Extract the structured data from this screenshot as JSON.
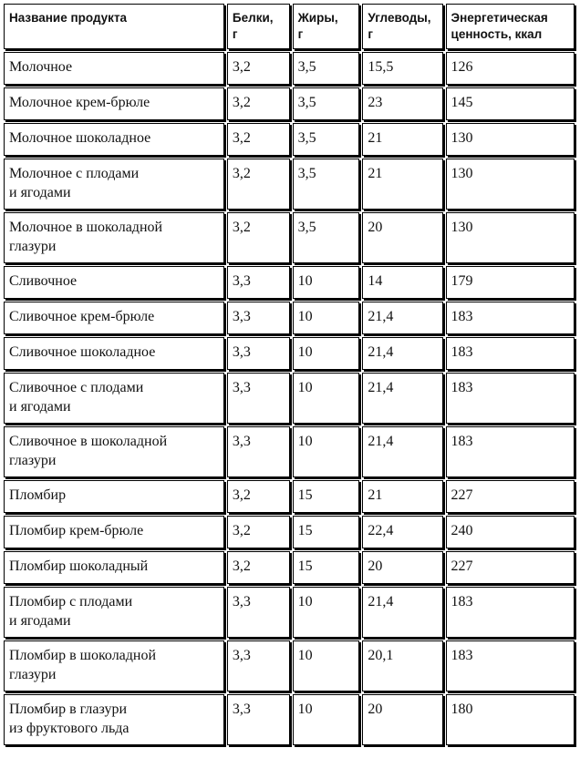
{
  "table": {
    "header": [
      "Название продукта",
      "Белки,\nг",
      "Жиры,\nг",
      "Углеводы,\nг",
      "Энергетическая\nценность, ккал"
    ],
    "rows": [
      [
        "Молочное",
        "3,2",
        "3,5",
        "15,5",
        "126"
      ],
      [
        "Молочное крем-брюле",
        "3,2",
        "3,5",
        "23",
        "145"
      ],
      [
        "Молочное шоколадное",
        "3,2",
        "3,5",
        "21",
        "130"
      ],
      [
        "Молочное с плодами\nи ягодами",
        "3,2",
        "3,5",
        "21",
        "130"
      ],
      [
        "Молочное в шоколадной\nглазури",
        "3,2",
        "3,5",
        "20",
        "130"
      ],
      [
        "Сливочное",
        "3,3",
        "10",
        "14",
        "179"
      ],
      [
        "Сливочное крем-брюле",
        "3,3",
        "10",
        "21,4",
        "183"
      ],
      [
        "Сливочное шоколадное",
        "3,3",
        "10",
        "21,4",
        "183"
      ],
      [
        "Сливочное с плодами\nи ягодами",
        "3,3",
        "10",
        "21,4",
        "183"
      ],
      [
        "Сливочное в шоколадной\nглазури",
        "3,3",
        "10",
        "21,4",
        "183"
      ],
      [
        "Пломбир",
        "3,2",
        "15",
        "21",
        "227"
      ],
      [
        "Пломбир крем-брюле",
        "3,2",
        "15",
        "22,4",
        "240"
      ],
      [
        "Пломбир шоколадный",
        "3,2",
        "15",
        "20",
        "227"
      ],
      [
        "Пломбир с плодами\nи ягодами",
        "3,3",
        "10",
        "21,4",
        "183"
      ],
      [
        "Пломбир в шоколадной\nглазури",
        "3,3",
        "10",
        "20,1",
        "183"
      ],
      [
        "Пломбир в глазури\nиз фруктового льда",
        "3,3",
        "10",
        "20",
        "180"
      ]
    ]
  }
}
